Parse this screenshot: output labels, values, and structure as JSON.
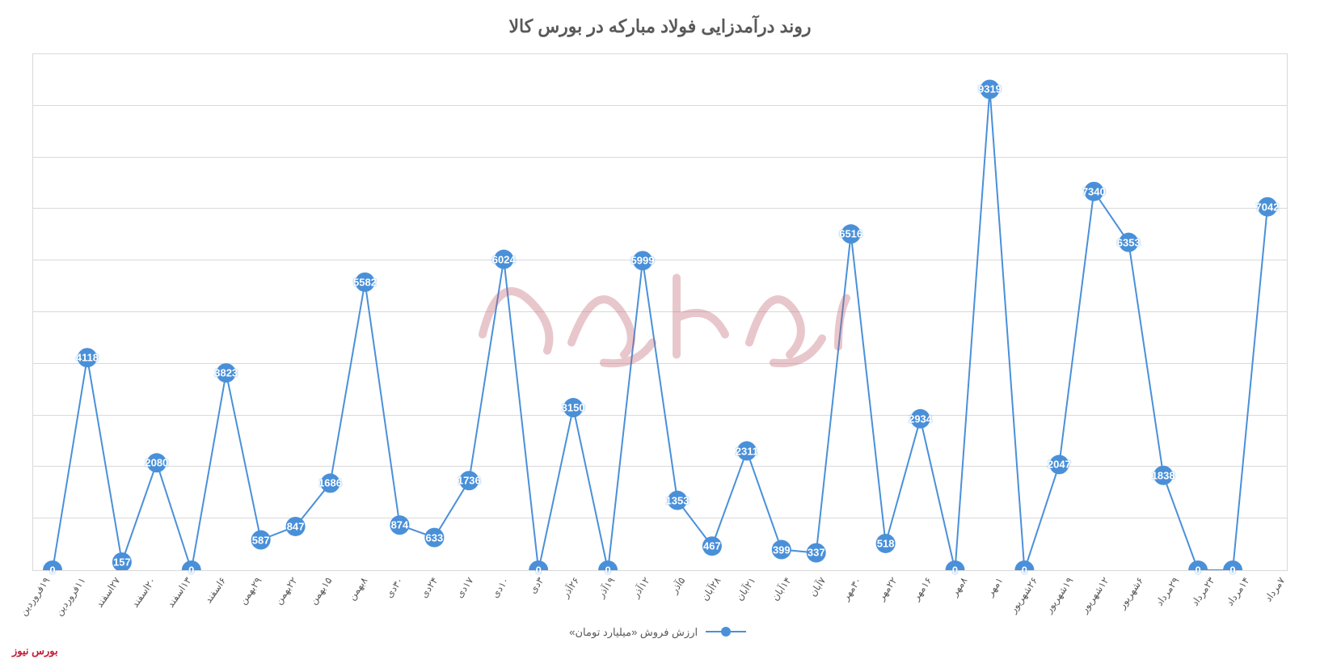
{
  "chart": {
    "type": "line",
    "title": "روند درآمدزایی فولاد مبارکه در بورس کالا",
    "title_fontsize": 22,
    "title_color": "#595959",
    "background_color": "#ffffff",
    "border_color": "#d9d9d9",
    "grid_color": "#d9d9d9",
    "ylim": [
      0,
      10000
    ],
    "ytick_step": 1000,
    "line_color": "#4a90d9",
    "line_width": 2,
    "marker_color": "#4a90d9",
    "marker_radius": 12,
    "label_color": "#ffffff",
    "label_fontsize": 13,
    "x_label_fontsize": 12,
    "x_label_rotation": -55,
    "categories": [
      "۷مرداد",
      "۱۴مرداد",
      "۲۳مرداد",
      "۲۹مرداد",
      "۶شهریور",
      "۱۲شهریور",
      "۱۹شهریور",
      "۲۶شهریور",
      "۱مهر",
      "۸مهر",
      "۱۶مهر",
      "۲۲مهر",
      "۳۰مهر",
      "۷آبان",
      "۱۴آبان",
      "۲۱آبان",
      "۲۸آبان",
      "۵آذر",
      "۱۲آذر",
      "۱۹آذر",
      "۲۶آذر",
      "۳دی",
      "۱۰دی",
      "۱۷دی",
      "۲۴دی",
      "۳۰دی",
      "۸بهمن",
      "۱۵بهمن",
      "۲۲بهمن",
      "۲۹بهمن",
      "۶اسفند",
      "۱۳اسفند",
      "۲۰اسفند",
      "۲۷اسفند",
      "۱۱فروردین",
      "۱۹فروردین"
    ],
    "values": [
      0,
      4118,
      157,
      2080,
      0,
      3823,
      587,
      847,
      1686,
      5582,
      874,
      633,
      1736,
      6024,
      0,
      3150,
      0,
      5999,
      1353,
      467,
      2311,
      399,
      337,
      6516,
      518,
      2934,
      0,
      9319,
      0,
      2047,
      7340,
      6353,
      1838,
      0,
      0,
      7042
    ]
  },
  "legend": {
    "label": "ارزش فروش «میلیارد تومان»"
  },
  "footer": {
    "text": "بورس نیوز"
  },
  "watermark": {
    "text_color": "#c06070"
  }
}
